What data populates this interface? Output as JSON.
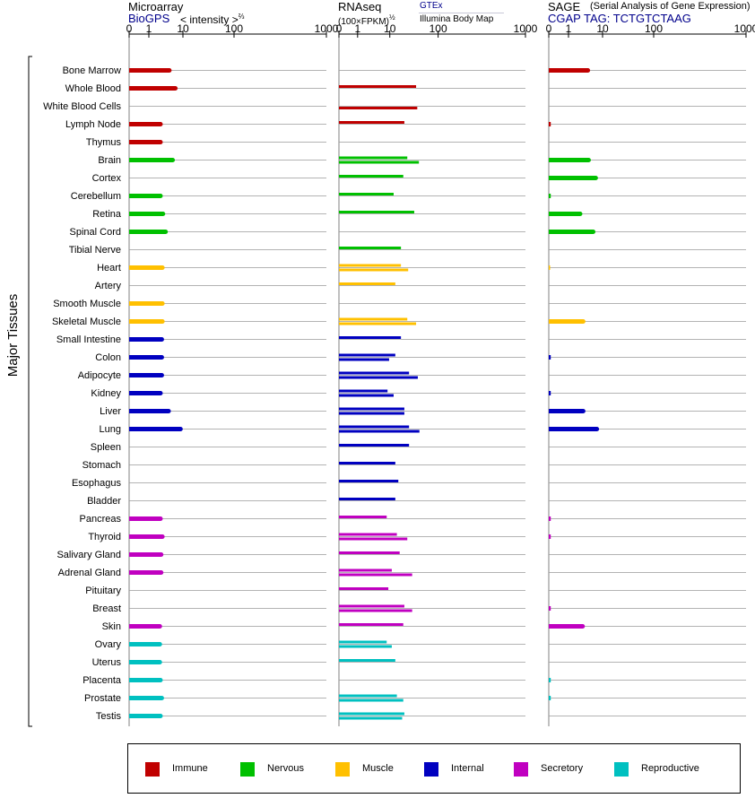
{
  "headers": {
    "microarray": {
      "title": "Microarray",
      "source": "BioGPS",
      "unit": "< intensity >",
      "unit_exp": "⅔"
    },
    "rnaseq": {
      "title": "RNAseq",
      "unit": "(100×FPKM)",
      "unit_exp": "½",
      "source_top": "GTEx",
      "source_bottom": "Illumina Body Map"
    },
    "sage": {
      "title": "SAGE",
      "subtitle": "(Serial Analysis of Gene Expression)",
      "tag": "CGAP TAG: TCTGTCTAAG"
    }
  },
  "axis_label": "Major Tissues",
  "legend": [
    {
      "key": "immune",
      "label": "Immune",
      "color": "#c00000"
    },
    {
      "key": "nervous",
      "label": "Nervous",
      "color": "#00c000"
    },
    {
      "key": "muscle",
      "label": "Muscle",
      "color": "#ffc000"
    },
    {
      "key": "internal",
      "label": "Internal",
      "color": "#0000c0"
    },
    {
      "key": "secretory",
      "label": "Secretory",
      "color": "#c000c0"
    },
    {
      "key": "reproductive",
      "label": "Reproductive",
      "color": "#00c0c0"
    }
  ],
  "chart_data": {
    "type": "bar",
    "orientation": "horizontal",
    "x_scale": "0, 1, 10, 100, 1000 (compressed log-like)",
    "tick_labels": [
      "0",
      "1",
      "10",
      "100",
      "1000"
    ],
    "xlim": [
      0,
      1000
    ],
    "categories": [
      "Bone Marrow",
      "Whole Blood",
      "White Blood Cells",
      "Lymph Node",
      "Thymus",
      "Brain",
      "Cortex",
      "Cerebellum",
      "Retina",
      "Spinal Cord",
      "Tibial Nerve",
      "Heart",
      "Artery",
      "Smooth Muscle",
      "Skeletal Muscle",
      "Small Intestine",
      "Colon",
      "Adipocyte",
      "Kidney",
      "Liver",
      "Lung",
      "Spleen",
      "Stomach",
      "Esophagus",
      "Bladder",
      "Pancreas",
      "Thyroid",
      "Salivary Gland",
      "Adrenal Gland",
      "Pituitary",
      "Breast",
      "Skin",
      "Ovary",
      "Uterus",
      "Placenta",
      "Prostate",
      "Testis"
    ],
    "groups": [
      "immune",
      "immune",
      "immune",
      "immune",
      "immune",
      "nervous",
      "nervous",
      "nervous",
      "nervous",
      "nervous",
      "nervous",
      "muscle",
      "muscle",
      "muscle",
      "muscle",
      "internal",
      "internal",
      "internal",
      "internal",
      "internal",
      "internal",
      "internal",
      "internal",
      "internal",
      "internal",
      "secretory",
      "secretory",
      "secretory",
      "secretory",
      "secretory",
      "secretory",
      "secretory",
      "reproductive",
      "reproductive",
      "reproductive",
      "reproductive",
      "reproductive"
    ],
    "microarray": [
      4,
      6,
      null,
      2.2,
      2.2,
      5,
      null,
      2.2,
      2.6,
      3.1,
      null,
      2.5,
      null,
      2.5,
      2.5,
      2.4,
      2.4,
      2.4,
      2.2,
      3.8,
      8.5,
      null,
      null,
      null,
      null,
      2.2,
      2.5,
      2.3,
      2.3,
      null,
      null,
      2.1,
      2.1,
      2.1,
      2.2,
      2.4,
      2.2
    ],
    "rnaseq_gtex": [
      null,
      35,
      null,
      20,
      null,
      23,
      19,
      12,
      32,
      null,
      17,
      17,
      13,
      null,
      23,
      17,
      13,
      25,
      8.5,
      20,
      25,
      25,
      13,
      15,
      13,
      8,
      14,
      16,
      11,
      9,
      20,
      19,
      8,
      13,
      null,
      14,
      20
    ],
    "rnaseq_illumina": [
      null,
      null,
      37,
      null,
      null,
      40,
      null,
      null,
      null,
      null,
      null,
      24,
      null,
      null,
      35,
      null,
      9.5,
      38,
      12,
      20,
      41,
      null,
      null,
      null,
      null,
      null,
      23,
      null,
      29,
      null,
      29,
      null,
      11,
      null,
      null,
      19,
      18
    ],
    "sage": [
      3.7,
      null,
      null,
      0.1,
      null,
      3.9,
      6.3,
      0.1,
      2.2,
      5.3,
      null,
      0.05,
      null,
      null,
      2.7,
      null,
      0.1,
      null,
      0.1,
      2.7,
      6.8,
      null,
      null,
      null,
      null,
      0.1,
      0.1,
      null,
      null,
      null,
      0.1,
      2.6,
      null,
      null,
      0.1,
      0.1,
      null
    ]
  }
}
